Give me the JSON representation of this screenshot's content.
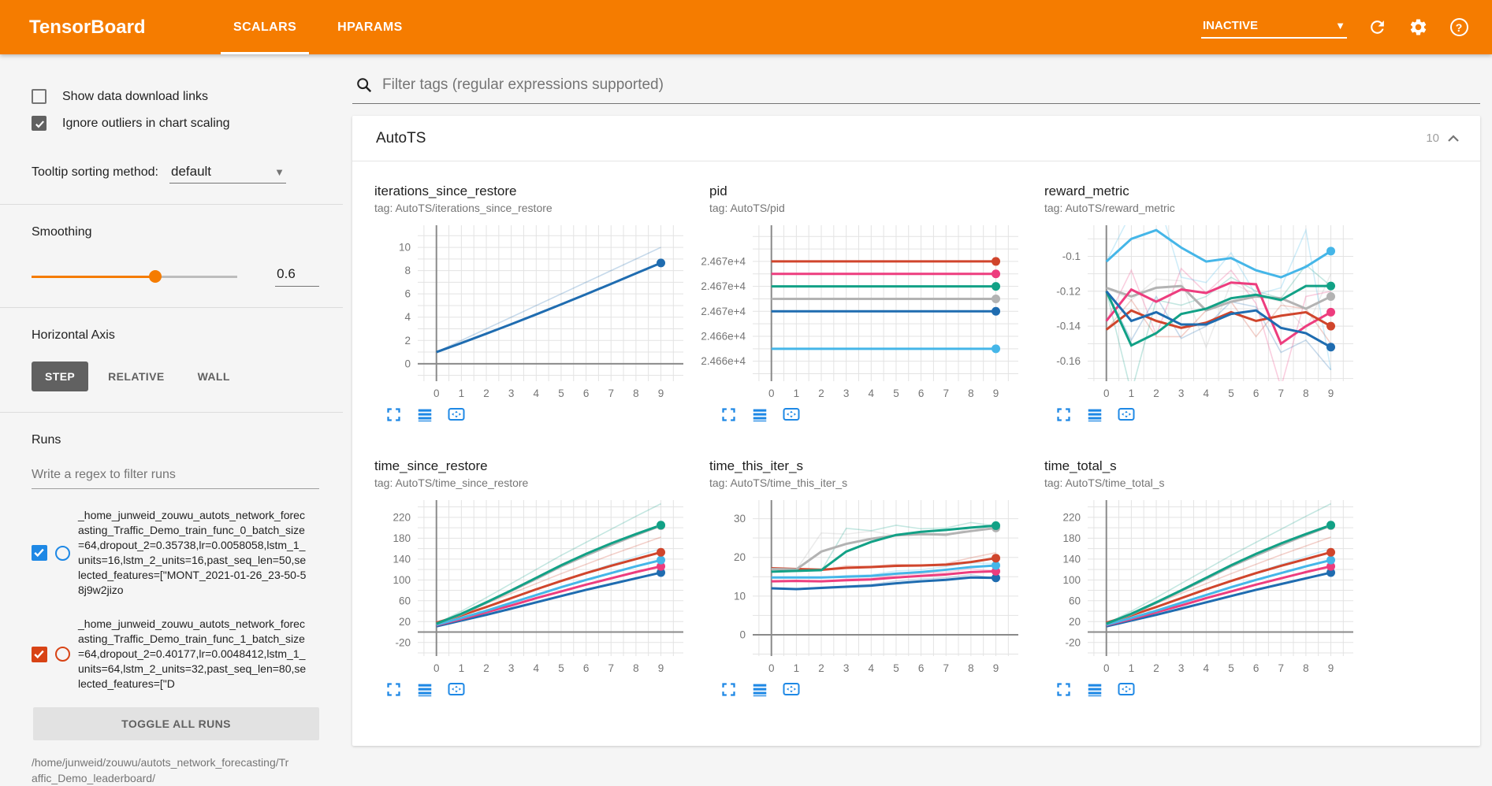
{
  "header": {
    "title": "TensorBoard",
    "tabs": [
      {
        "label": "SCALARS",
        "active": true
      },
      {
        "label": "HPARAMS",
        "active": false
      }
    ],
    "status": "INACTIVE",
    "accent_color": "#f57c00"
  },
  "sidebar": {
    "checkboxes": [
      {
        "label": "Show data download links",
        "checked": false
      },
      {
        "label": "Ignore outliers in chart scaling",
        "checked": true
      }
    ],
    "tooltip_sorting": {
      "label": "Tooltip sorting method:",
      "value": "default"
    },
    "smoothing": {
      "label": "Smoothing",
      "value": "0.6",
      "percent": 60
    },
    "horizontal_axis": {
      "label": "Horizontal Axis",
      "options": [
        "STEP",
        "RELATIVE",
        "WALL"
      ],
      "selected": "STEP"
    },
    "runs": {
      "label": "Runs",
      "filter_placeholder": "Write a regex to filter runs",
      "items": [
        {
          "checked": true,
          "color": "#1e88e5",
          "name": "_home_junweid_zouwu_autots_network_forecasting_Traffic_Demo_train_func_0_batch_size=64,dropout_2=0.35738,lr=0.0058058,lstm_1_units=16,lstm_2_units=16,past_seq_len=50,selected_features=[\"MONT_2021-01-26_23-50-58j9w2jizo"
        },
        {
          "checked": true,
          "color": "#d84315",
          "name": "_home_junweid_zouwu_autots_network_forecasting_Traffic_Demo_train_func_1_batch_size=64,dropout_2=0.40177,lr=0.0048412,lstm_1_units=64,lstm_2_units=32,past_seq_len=80,selected_features=[\"D"
        }
      ],
      "toggle_button": "TOGGLE ALL RUNS",
      "footer": "/home/junweid/zouwu/autots_network_forecasting/Traffic_Demo_leaderboard/"
    }
  },
  "main": {
    "filter_placeholder": "Filter tags (regular expressions supported)",
    "section": {
      "title": "AutoTS",
      "count": "10"
    }
  },
  "chart_data": [
    {
      "type": "line",
      "title": "iterations_since_restore",
      "tag": "tag: AutoTS/iterations_since_restore",
      "x": [
        0,
        1,
        2,
        3,
        4,
        5,
        6,
        7,
        8,
        9
      ],
      "xrange": [
        -0.75,
        9.9
      ],
      "xminor": 0.5,
      "yrange": [
        -1.5,
        11.9
      ],
      "yminor": 1,
      "yticks": [
        {
          "v": 0,
          "label": "0"
        },
        {
          "v": 2,
          "label": "2"
        },
        {
          "v": 4,
          "label": "4"
        },
        {
          "v": 6,
          "label": "6"
        },
        {
          "v": 8,
          "label": "8"
        },
        {
          "v": 10,
          "label": "10"
        }
      ],
      "series": [
        {
          "color": "#1f6cb0",
          "dot": true,
          "values": [
            1,
            1.78,
            2.58,
            3.4,
            4.24,
            5.1,
            5.97,
            6.86,
            7.76,
            8.66
          ],
          "raw": [
            1,
            2,
            3,
            4,
            5,
            6,
            7,
            8,
            9,
            10
          ]
        }
      ]
    },
    {
      "type": "line",
      "title": "pid",
      "tag": "tag: AutoTS/pid",
      "x": [
        0,
        1,
        2,
        3,
        4,
        5,
        6,
        7,
        8,
        9
      ],
      "xrange": [
        -0.75,
        9.9
      ],
      "xminor": 0.5,
      "yrange": [
        24660.4,
        24672.9
      ],
      "yminor": 1,
      "yticks": [
        {
          "v": 24670,
          "label": "2.467e+4"
        },
        {
          "v": 24668,
          "label": "2.467e+4"
        },
        {
          "v": 24666,
          "label": "2.467e+4"
        },
        {
          "v": 24664,
          "label": "2.466e+4"
        },
        {
          "v": 24662,
          "label": "2.466e+4"
        }
      ],
      "series": [
        {
          "color": "#d0452c",
          "dot": true,
          "values": [
            24670,
            24670,
            24670,
            24670,
            24670,
            24670,
            24670,
            24670,
            24670,
            24670
          ]
        },
        {
          "color": "#ed3d7e",
          "dot": true,
          "values": [
            24669,
            24669,
            24669,
            24669,
            24669,
            24669,
            24669,
            24669,
            24669,
            24669
          ]
        },
        {
          "color": "#12a186",
          "dot": true,
          "values": [
            24668,
            24668,
            24668,
            24668,
            24668,
            24668,
            24668,
            24668,
            24668,
            24668
          ]
        },
        {
          "color": "#b3b3b3",
          "dot": true,
          "values": [
            24667,
            24667,
            24667,
            24667,
            24667,
            24667,
            24667,
            24667,
            24667,
            24667
          ]
        },
        {
          "color": "#1f6cb0",
          "dot": true,
          "values": [
            24666,
            24666,
            24666,
            24666,
            24666,
            24666,
            24666,
            24666,
            24666,
            24666
          ]
        },
        {
          "color": "#45b6e8",
          "dot": true,
          "values": [
            24663,
            24663,
            24663,
            24663,
            24663,
            24663,
            24663,
            24663,
            24663,
            24663
          ]
        }
      ]
    },
    {
      "type": "line",
      "title": "reward_metric",
      "tag": "tag: AutoTS/reward_metric",
      "x": [
        0,
        1,
        2,
        3,
        4,
        5,
        6,
        7,
        8,
        9
      ],
      "xrange": [
        -0.75,
        9.9
      ],
      "xminor": 0.5,
      "yrange": [
        -0.1715,
        -0.0822
      ],
      "yminor": 0.01,
      "yticks": [
        {
          "v": -0.1,
          "label": "-0.1"
        },
        {
          "v": -0.12,
          "label": "-0.12"
        },
        {
          "v": -0.14,
          "label": "-0.14"
        },
        {
          "v": -0.16,
          "label": "-0.16"
        }
      ],
      "series": [
        {
          "color": "#b3b3b3",
          "dot": true,
          "values": [
            -0.118,
            -0.123,
            -0.118,
            -0.117,
            -0.131,
            -0.126,
            -0.123,
            -0.124,
            -0.13,
            -0.123
          ],
          "raw": [
            -0.118,
            -0.125,
            -0.113,
            -0.114,
            -0.152,
            -0.115,
            -0.122,
            -0.126,
            -0.142,
            -0.11
          ]
        },
        {
          "color": "#ed3d7e",
          "dot": true,
          "values": [
            -0.137,
            -0.119,
            -0.126,
            -0.119,
            -0.121,
            -0.115,
            -0.116,
            -0.15,
            -0.14,
            -0.132
          ],
          "raw": [
            -0.137,
            -0.108,
            -0.145,
            -0.107,
            -0.121,
            -0.108,
            -0.127,
            -0.175,
            -0.123,
            -0.12
          ]
        },
        {
          "color": "#d0452c",
          "dot": true,
          "values": [
            -0.142,
            -0.131,
            -0.137,
            -0.141,
            -0.138,
            -0.132,
            -0.137,
            -0.134,
            -0.132,
            -0.14
          ],
          "raw": [
            -0.142,
            -0.125,
            -0.146,
            -0.146,
            -0.131,
            -0.126,
            -0.146,
            -0.128,
            -0.13,
            -0.15
          ]
        },
        {
          "color": "#12a186",
          "dot": true,
          "values": [
            -0.12,
            -0.151,
            -0.144,
            -0.133,
            -0.13,
            -0.124,
            -0.122,
            -0.125,
            -0.117,
            -0.117
          ],
          "raw": [
            -0.12,
            -0.178,
            -0.125,
            -0.128,
            -0.123,
            -0.112,
            -0.12,
            -0.124,
            -0.105,
            -0.117
          ]
        },
        {
          "color": "#1f6cb0",
          "dot": true,
          "values": [
            -0.12,
            -0.137,
            -0.132,
            -0.139,
            -0.139,
            -0.133,
            -0.131,
            -0.141,
            -0.144,
            -0.152
          ],
          "raw": [
            -0.12,
            -0.148,
            -0.123,
            -0.147,
            -0.14,
            -0.126,
            -0.129,
            -0.155,
            -0.148,
            -0.165
          ]
        },
        {
          "color": "#45b6e8",
          "dot": true,
          "values": [
            -0.103,
            -0.09,
            -0.085,
            -0.095,
            -0.103,
            -0.101,
            -0.108,
            -0.112,
            -0.106,
            -0.097
          ],
          "raw": [
            -0.103,
            -0.075,
            -0.064,
            -0.112,
            -0.115,
            -0.098,
            -0.122,
            -0.118,
            -0.085,
            -0.165
          ]
        }
      ]
    },
    {
      "type": "line",
      "title": "time_since_restore",
      "tag": "tag: AutoTS/time_since_restore",
      "x": [
        0,
        1,
        2,
        3,
        4,
        5,
        6,
        7,
        8,
        9
      ],
      "xrange": [
        -0.75,
        9.9
      ],
      "xminor": 0.5,
      "yrange": [
        -46,
        253
      ],
      "yminor": 20,
      "yticks": [
        {
          "v": -20,
          "label": "-20"
        },
        {
          "v": 20,
          "label": "20"
        },
        {
          "v": 60,
          "label": "60"
        },
        {
          "v": 100,
          "label": "100"
        },
        {
          "v": 140,
          "label": "140"
        },
        {
          "v": 180,
          "label": "180"
        },
        {
          "v": 220,
          "label": "220"
        }
      ],
      "series": [
        {
          "color": "#1f6cb0",
          "dot": true,
          "values": [
            11,
            22,
            33,
            45,
            57,
            69,
            81,
            92,
            103,
            114
          ]
        },
        {
          "color": "#ed3d7e",
          "dot": true,
          "values": [
            13,
            25,
            38,
            51,
            65,
            78,
            91,
            103,
            115,
            126
          ]
        },
        {
          "color": "#45b6e8",
          "dot": true,
          "values": [
            14,
            27,
            41,
            56,
            71,
            86,
            100,
            113,
            126,
            138
          ],
          "raw": [
            14,
            30,
            47,
            64,
            81,
            98,
            114,
            130,
            145,
            160
          ]
        },
        {
          "color": "#d0452c",
          "dot": true,
          "values": [
            18,
            32,
            48,
            65,
            82,
            98,
            113,
            127,
            140,
            153
          ],
          "raw": [
            18,
            36,
            55,
            74,
            93,
            112,
            130,
            148,
            165,
            182
          ]
        },
        {
          "color": "#b3b3b3",
          "dot": true,
          "values": [
            16,
            34,
            56,
            79,
            102,
            126,
            147,
            167,
            186,
            204
          ]
        },
        {
          "color": "#12a186",
          "dot": true,
          "values": [
            16,
            35,
            57,
            80,
            104,
            128,
            150,
            170,
            188,
            205
          ],
          "raw": [
            16,
            40,
            66,
            93,
            120,
            147,
            172,
            197,
            222,
            246
          ]
        }
      ]
    },
    {
      "type": "line",
      "title": "time_this_iter_s",
      "tag": "tag: AutoTS/time_this_iter_s",
      "x": [
        0,
        1,
        2,
        3,
        4,
        5,
        6,
        7,
        8,
        9
      ],
      "xrange": [
        -0.75,
        9.9
      ],
      "xminor": 0.5,
      "yrange": [
        -5.5,
        34.8
      ],
      "yminor": 5,
      "yticks": [
        {
          "v": 0,
          "label": "0"
        },
        {
          "v": 10,
          "label": "10"
        },
        {
          "v": 20,
          "label": "20"
        },
        {
          "v": 30,
          "label": "30"
        }
      ],
      "series": [
        {
          "color": "#1f6cb0",
          "dot": true,
          "values": [
            12,
            11.8,
            12.1,
            12.4,
            12.7,
            13.3,
            13.8,
            14.2,
            14.8,
            14.7
          ],
          "raw": [
            12,
            11.7,
            12.3,
            12.6,
            13,
            13.9,
            14.4,
            14.7,
            15.5,
            14.6
          ]
        },
        {
          "color": "#ed3d7e",
          "dot": true,
          "values": [
            13.8,
            13.9,
            13.8,
            14.1,
            14.3,
            14.8,
            15.2,
            15.6,
            16.2,
            16.4
          ],
          "raw": [
            13.8,
            14,
            13.7,
            14.4,
            14.6,
            15.4,
            15.8,
            16.2,
            17,
            16.6
          ]
        },
        {
          "color": "#45b6e8",
          "dot": true,
          "values": [
            14.8,
            14.8,
            14.8,
            15,
            15.2,
            15.8,
            16.2,
            16.8,
            17.5,
            17.9
          ],
          "raw": [
            14.8,
            14.9,
            14.7,
            15.3,
            15.5,
            16.5,
            16.8,
            17.6,
            18.6,
            18.4
          ]
        },
        {
          "color": "#d0452c",
          "dot": true,
          "values": [
            17.2,
            17,
            16.8,
            17.3,
            17.5,
            17.8,
            17.9,
            18.1,
            18.8,
            19.8
          ],
          "raw": [
            17.2,
            16.9,
            16.7,
            17.8,
            17.7,
            18.2,
            18,
            18.4,
            19.9,
            21.2
          ]
        },
        {
          "color": "#b3b3b3",
          "dot": true,
          "values": [
            17,
            16.9,
            21.5,
            23.5,
            24.8,
            25.7,
            26,
            25.9,
            26.8,
            27.6
          ],
          "raw": [
            17,
            16.8,
            26.3,
            26,
            26.8,
            25.6,
            26.3,
            25.5,
            27.6,
            27.3
          ]
        },
        {
          "color": "#12a186",
          "dot": true,
          "values": [
            16.3,
            16.5,
            16.7,
            21.5,
            24,
            25.8,
            26.6,
            27.1,
            27.7,
            28.2
          ],
          "raw": [
            16.3,
            16.7,
            16.5,
            27.5,
            26.9,
            28.3,
            27.4,
            27.6,
            29,
            28.1
          ]
        }
      ]
    },
    {
      "type": "line",
      "title": "time_total_s",
      "tag": "tag: AutoTS/time_total_s",
      "x": [
        0,
        1,
        2,
        3,
        4,
        5,
        6,
        7,
        8,
        9
      ],
      "xrange": [
        -0.75,
        9.9
      ],
      "xminor": 0.5,
      "yrange": [
        -46,
        253
      ],
      "yminor": 20,
      "yticks": [
        {
          "v": -20,
          "label": "-20"
        },
        {
          "v": 20,
          "label": "20"
        },
        {
          "v": 60,
          "label": "60"
        },
        {
          "v": 100,
          "label": "100"
        },
        {
          "v": 140,
          "label": "140"
        },
        {
          "v": 180,
          "label": "180"
        },
        {
          "v": 220,
          "label": "220"
        }
      ],
      "series": [
        {
          "color": "#1f6cb0",
          "dot": true,
          "values": [
            11,
            22,
            33,
            45,
            57,
            69,
            81,
            92,
            103,
            114
          ]
        },
        {
          "color": "#ed3d7e",
          "dot": true,
          "values": [
            13,
            25,
            38,
            51,
            65,
            78,
            91,
            103,
            115,
            126
          ]
        },
        {
          "color": "#45b6e8",
          "dot": true,
          "values": [
            14,
            27,
            41,
            56,
            71,
            86,
            100,
            113,
            126,
            138
          ],
          "raw": [
            14,
            30,
            47,
            64,
            81,
            98,
            114,
            130,
            145,
            160
          ]
        },
        {
          "color": "#d0452c",
          "dot": true,
          "values": [
            18,
            32,
            48,
            65,
            82,
            98,
            113,
            127,
            140,
            153
          ],
          "raw": [
            18,
            36,
            55,
            74,
            93,
            112,
            130,
            148,
            165,
            182
          ]
        },
        {
          "color": "#b3b3b3",
          "dot": true,
          "values": [
            16,
            34,
            56,
            79,
            102,
            126,
            147,
            167,
            186,
            204
          ]
        },
        {
          "color": "#12a186",
          "dot": true,
          "values": [
            16,
            35,
            57,
            80,
            104,
            128,
            150,
            170,
            188,
            205
          ],
          "raw": [
            16,
            40,
            66,
            93,
            120,
            147,
            172,
            197,
            222,
            246
          ]
        }
      ]
    }
  ]
}
